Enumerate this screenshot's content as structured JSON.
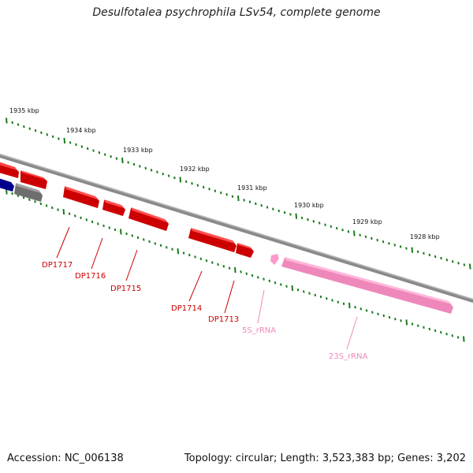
{
  "title": "Desulfotalea psychrophila LSv54, complete genome",
  "footer": {
    "accession": "Accession: NC_006138",
    "summary": "Topology: circular; Length: 3,523,383 bp; Genes: 3,202"
  },
  "colors": {
    "backbone": "#8a8a8a",
    "tick": "#1c7a1c",
    "gene": "#ff0000",
    "gene_label": "#cc0000",
    "rrna": "#ff99cc",
    "rrna_label": "#ee88bb",
    "other_gene_blue": "#00008b",
    "other_gene_gray": "#777777"
  },
  "ticks": [
    {
      "label": "1935 kbp"
    },
    {
      "label": "1934 kbp"
    },
    {
      "label": "1933 kbp"
    },
    {
      "label": "1932 kbp"
    },
    {
      "label": "1931 kbp"
    },
    {
      "label": "1930 kbp"
    },
    {
      "label": "1929 kbp"
    },
    {
      "label": "1928 kbp"
    }
  ],
  "features": [
    {
      "label": "DP1717",
      "kind": "gene"
    },
    {
      "label": "DP1716",
      "kind": "gene"
    },
    {
      "label": "DP1715",
      "kind": "gene"
    },
    {
      "label": "DP1714",
      "kind": "gene"
    },
    {
      "label": "DP1713",
      "kind": "gene"
    },
    {
      "label": "5S_rRNA",
      "kind": "rrna"
    },
    {
      "label": "23S_rRNA",
      "kind": "rrna"
    }
  ]
}
